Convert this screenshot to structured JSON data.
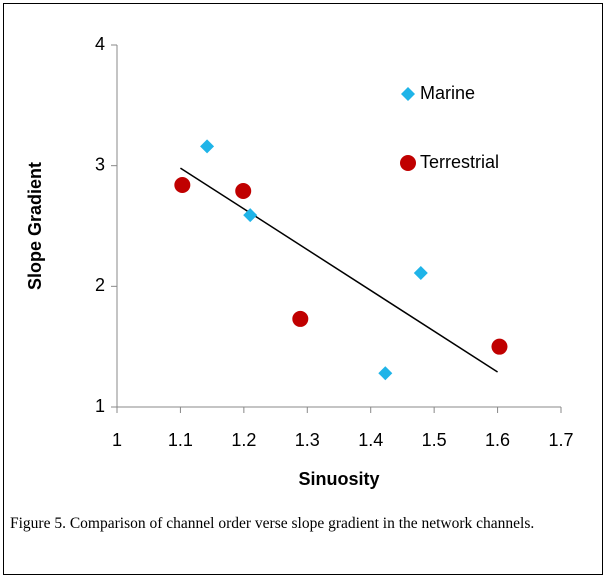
{
  "chart_data": {
    "type": "scatter",
    "caption": "Figure 5. Comparison of channel order verse slope gradient in the network channels.",
    "xlabel": "Sinuosity",
    "ylabel": "Slope Gradient",
    "xlim": [
      1,
      1.7
    ],
    "xticks": [
      1,
      1.1,
      1.2,
      1.3,
      1.4,
      1.5,
      1.6,
      1.7
    ],
    "ylim": [
      1,
      4
    ],
    "yticks": [
      1,
      2,
      3,
      4
    ],
    "legend": "top-right",
    "series": [
      {
        "name": "Marine",
        "color": "#1fb4e8",
        "marker": "diamond",
        "x": [
          1.142,
          1.21,
          1.479,
          1.423
        ],
        "values": [
          3.16,
          2.59,
          2.11,
          1.28
        ]
      },
      {
        "name": "Terrestrial",
        "color": "#c00000",
        "marker": "circle",
        "x": [
          1.103,
          1.199,
          1.289,
          1.603
        ],
        "values": [
          2.84,
          2.79,
          1.73,
          1.5
        ]
      }
    ],
    "trendline": {
      "color": "#000000",
      "x": [
        1.1,
        1.6
      ],
      "values": [
        2.98,
        1.29
      ]
    }
  }
}
